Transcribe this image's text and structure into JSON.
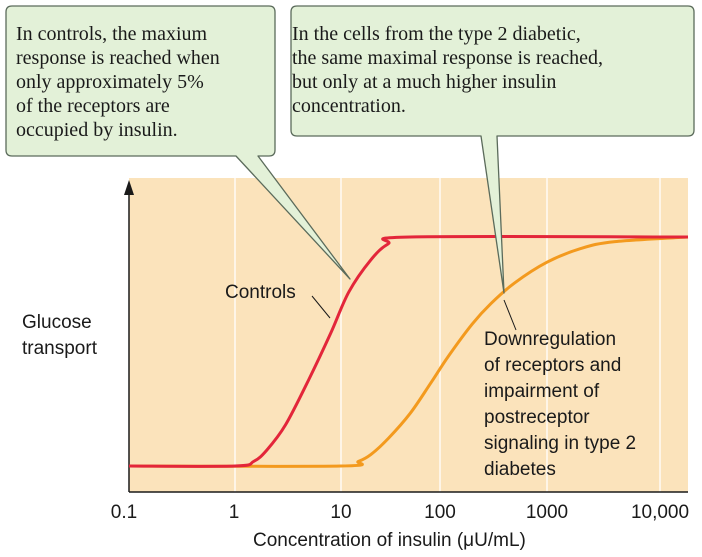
{
  "chart_data": {
    "type": "line",
    "title": "",
    "xlabel": "Concentration of insulin (μU/mL)",
    "ylabel": "Glucose\ntransport",
    "x_scale": "log",
    "xlim": [
      0.1,
      10000
    ],
    "x_ticks": [
      "0.1",
      "1",
      "10",
      "100",
      "1000",
      "10,000"
    ],
    "grid": true,
    "series": [
      {
        "name": "Controls",
        "color": "#e3263a",
        "x": [
          0.1,
          1,
          1.5,
          2,
          3,
          5,
          8,
          12,
          20,
          30,
          50,
          10000
        ],
        "y": [
          0,
          0,
          0.02,
          0.07,
          0.18,
          0.38,
          0.58,
          0.76,
          0.9,
          0.97,
          1.0,
          1.0
        ]
      },
      {
        "name": "Downregulation of receptors and impairment of postreceptor signaling in type 2 diabetes",
        "color": "#f39a1e",
        "x": [
          0.1,
          10,
          15,
          20,
          30,
          50,
          80,
          120,
          200,
          300,
          500,
          1000,
          2000,
          4000,
          10000
        ],
        "y": [
          0,
          0,
          0.02,
          0.05,
          0.12,
          0.23,
          0.36,
          0.48,
          0.62,
          0.71,
          0.8,
          0.89,
          0.95,
          0.98,
          1.0
        ]
      }
    ],
    "annotations": {
      "controls_label": "Controls",
      "diabetes_label": "Downregulation\nof receptors and\nimpairment of\npostreceptor\nsignaling in type 2\ndiabetes",
      "callout_left": "In controls, the maxium\nresponse is reached when\nonly approximately 5%\nof the receptors are\noccupied by insulin.",
      "callout_right": "In the cells from the type 2 diabetic,\nthe same maximal response is reached,\nbut only at a much higher insulin\nconcentration."
    },
    "colors": {
      "plot_background": "#fbe3bb",
      "grid": "#ffffff",
      "callout_fill": "#e3f1d8",
      "callout_border": "#5b6b5b"
    }
  }
}
